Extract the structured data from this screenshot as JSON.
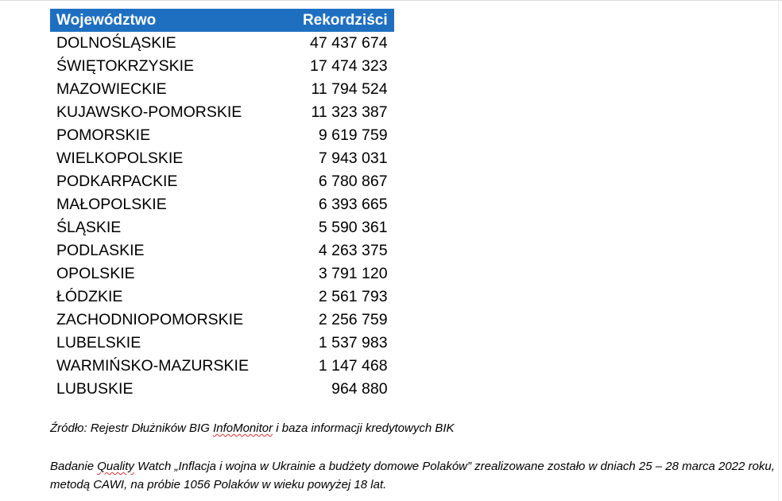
{
  "table": {
    "header_region": "Województwo",
    "header_value": "Rekordziści",
    "header_color": "#1f6fc1",
    "rows": [
      {
        "name": "DOLNOŚLĄSKIE",
        "value": "47 437 674"
      },
      {
        "name": "ŚWIĘTOKRZYSKIE",
        "value": "17 474 323"
      },
      {
        "name": "MAZOWIECKIE",
        "value": "11 794 524"
      },
      {
        "name": "KUJAWSKO-POMORSKIE",
        "value": "11 323 387"
      },
      {
        "name": "POMORSKIE",
        "value": "9 619 759"
      },
      {
        "name": "WIELKOPOLSKIE",
        "value": "7 943 031"
      },
      {
        "name": "PODKARPACKIE",
        "value": "6 780 867"
      },
      {
        "name": "MAŁOPOLSKIE",
        "value": "6 393 665"
      },
      {
        "name": "ŚLĄSKIE",
        "value": "5 590 361"
      },
      {
        "name": "PODLASKIE",
        "value": "4 263 375"
      },
      {
        "name": "OPOLSKIE",
        "value": "3 791 120"
      },
      {
        "name": "ŁÓDZKIE",
        "value": "2 561 793"
      },
      {
        "name": "ZACHODNIOPOMORSKIE",
        "value": "2 256 759"
      },
      {
        "name": "LUBELSKIE",
        "value": "1 537 983"
      },
      {
        "name": "WARMIŃSKO-MAZURSKIE",
        "value": "1 147 468"
      },
      {
        "name": "LUBUSKIE",
        "value": "964 880"
      }
    ]
  },
  "source_note": {
    "before": "Źródło: Rejestr Dłużników BIG ",
    "highlight": "InfoMonitor",
    "after": " i baza informacji kredytowych BIK"
  },
  "study_note": {
    "before": "Badanie ",
    "highlight": "Quality",
    "after": " Watch „Inflacja i wojna w Ukrainie a budżety domowe Polaków” zrealizowane zostało w dniach 25 – 28 marca 2022 roku, metodą CAWI, na próbie 1056 Polaków w wieku powyżej 18 lat."
  }
}
